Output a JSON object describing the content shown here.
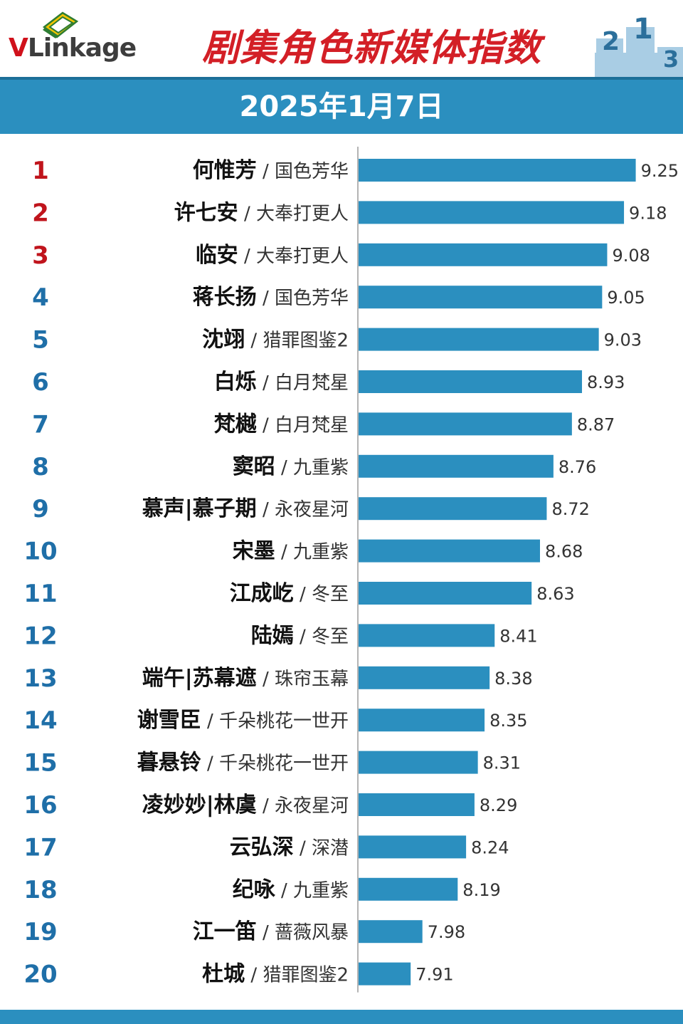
{
  "header": {
    "logo_text": "VLinkage",
    "title": "剧集角色新媒体指数",
    "podium_numbers": [
      "2",
      "1",
      "3"
    ]
  },
  "banner": {
    "date": "2025年1月7日"
  },
  "colors": {
    "bar": "#2b8fbf",
    "rank_top3": "#c0141c",
    "rank_other": "#1f6fa8",
    "title": "#d31f26",
    "banner": "#2b8fbf"
  },
  "chart_data": {
    "type": "bar",
    "orientation": "horizontal",
    "title": "剧集角色新媒体指数",
    "date": "2025年1月7日",
    "xlim": [
      7.6,
      9.4
    ],
    "grid": false,
    "rows": [
      {
        "rank": 1,
        "character": "何惟芳",
        "show": "国色芳华",
        "value": 9.25
      },
      {
        "rank": 2,
        "character": "许七安",
        "show": "大奉打更人",
        "value": 9.18
      },
      {
        "rank": 3,
        "character": "临安",
        "show": "大奉打更人",
        "value": 9.08
      },
      {
        "rank": 4,
        "character": "蒋长扬",
        "show": "国色芳华",
        "value": 9.05
      },
      {
        "rank": 5,
        "character": "沈翊",
        "show": "猎罪图鉴2",
        "value": 9.03
      },
      {
        "rank": 6,
        "character": "白烁",
        "show": "白月梵星",
        "value": 8.93
      },
      {
        "rank": 7,
        "character": "梵樾",
        "show": "白月梵星",
        "value": 8.87
      },
      {
        "rank": 8,
        "character": "窦昭",
        "show": "九重紫",
        "value": 8.76
      },
      {
        "rank": 9,
        "character": "慕声|慕子期",
        "show": "永夜星河",
        "value": 8.72
      },
      {
        "rank": 10,
        "character": "宋墨",
        "show": "九重紫",
        "value": 8.68
      },
      {
        "rank": 11,
        "character": "江成屹",
        "show": "冬至",
        "value": 8.63
      },
      {
        "rank": 12,
        "character": "陆嫣",
        "show": "冬至",
        "value": 8.41
      },
      {
        "rank": 13,
        "character": "端午|苏幕遮",
        "show": "珠帘玉幕",
        "value": 8.38
      },
      {
        "rank": 14,
        "character": "谢雪臣",
        "show": "千朵桃花一世开",
        "value": 8.35
      },
      {
        "rank": 15,
        "character": "暮悬铃",
        "show": "千朵桃花一世开",
        "value": 8.31
      },
      {
        "rank": 16,
        "character": "凌妙妙|林虞",
        "show": "永夜星河",
        "value": 8.29
      },
      {
        "rank": 17,
        "character": "云弘深",
        "show": "深潜",
        "value": 8.24
      },
      {
        "rank": 18,
        "character": "纪咏",
        "show": "九重紫",
        "value": 8.19
      },
      {
        "rank": 19,
        "character": "江一笛",
        "show": "蔷薇风暴",
        "value": 7.98
      },
      {
        "rank": 20,
        "character": "杜城",
        "show": "猎罪图鉴2",
        "value": 7.91
      }
    ]
  }
}
